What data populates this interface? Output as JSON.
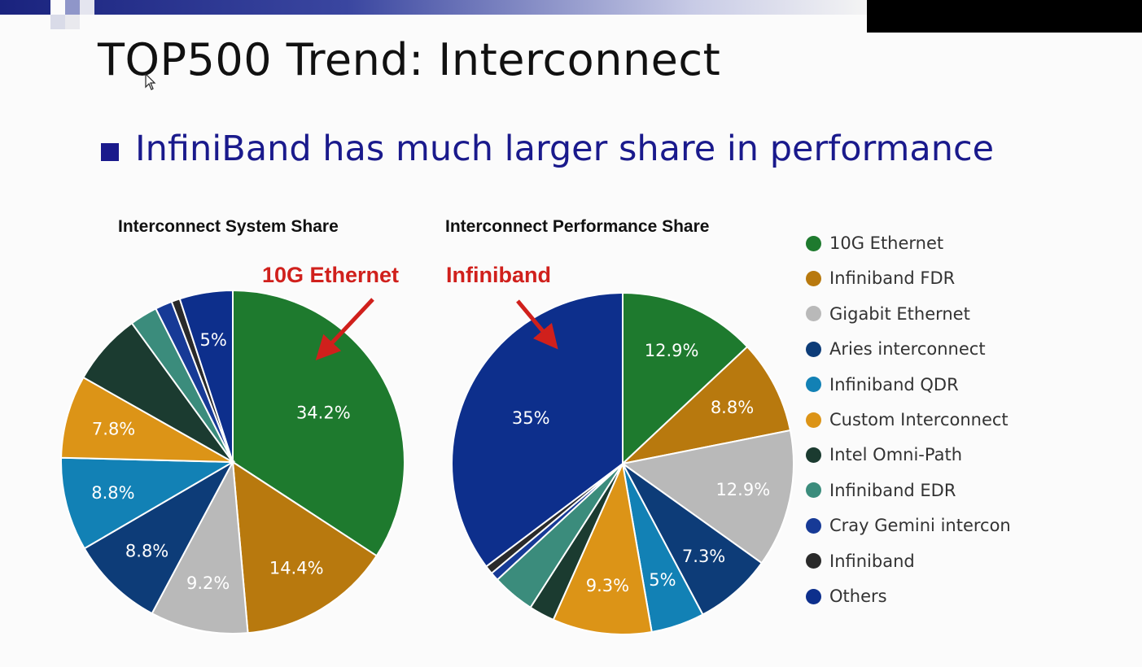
{
  "slide": {
    "title": "TOP500 Trend: Interconnect",
    "bullet": "InfiniBand has much larger share in performance"
  },
  "annotations": {
    "left": "10G Ethernet",
    "right": "Infiniband"
  },
  "colors": {
    "10G Ethernet": "#1e7a2e",
    "Infiniband FDR": "#b8790e",
    "Gigabit Ethernet": "#b9b9b9",
    "Aries interconnect": "#0d3c78",
    "Infiniband QDR": "#1281b5",
    "Custom Interconnect": "#dc9417",
    "Intel Omni-Path": "#1b3b30",
    "Infiniband EDR": "#3b8c7c",
    "Cray Gemini interconnect": "#173a96",
    "Infiniband": "#2a2a2a",
    "Others": "#0d2f8c",
    "annotation": "#d0201c",
    "bullet": "#1a1a8c"
  },
  "legend": [
    {
      "label": "10G Ethernet",
      "series": "10G Ethernet"
    },
    {
      "label": "Infiniband FDR",
      "series": "Infiniband FDR"
    },
    {
      "label": "Gigabit Ethernet",
      "series": "Gigabit Ethernet"
    },
    {
      "label": "Aries interconnect",
      "series": "Aries interconnect"
    },
    {
      "label": "Infiniband QDR",
      "series": "Infiniband QDR"
    },
    {
      "label": "Custom Interconnect",
      "series": "Custom Interconnect"
    },
    {
      "label": "Intel Omni-Path",
      "series": "Intel Omni-Path"
    },
    {
      "label": "Infiniband EDR",
      "series": "Infiniband EDR"
    },
    {
      "label": "Cray Gemini interconnec",
      "series": "Cray Gemini interconnect"
    },
    {
      "label": "Infiniband",
      "series": "Infiniband"
    },
    {
      "label": "Others",
      "series": "Others"
    }
  ],
  "chart_data": [
    {
      "type": "pie",
      "title": "Interconnect System Share",
      "start_angle_deg": 0,
      "direction": "clockwise",
      "slices": [
        {
          "label": "10G Ethernet",
          "value": 34.2,
          "text": "34.2%"
        },
        {
          "label": "Infiniband FDR",
          "value": 14.4,
          "text": "14.4%"
        },
        {
          "label": "Gigabit Ethernet",
          "value": 9.2,
          "text": "9.2%"
        },
        {
          "label": "Aries interconnect",
          "value": 8.8,
          "text": "8.8%"
        },
        {
          "label": "Infiniband QDR",
          "value": 8.8,
          "text": "8.8%"
        },
        {
          "label": "Custom Interconnect",
          "value": 7.8,
          "text": "7.8%"
        },
        {
          "label": "Intel Omni-Path",
          "value": 6.8,
          "text": ""
        },
        {
          "label": "Infiniband EDR",
          "value": 2.6,
          "text": ""
        },
        {
          "label": "Cray Gemini interconnect",
          "value": 1.6,
          "text": ""
        },
        {
          "label": "Infiniband",
          "value": 0.8,
          "text": ""
        },
        {
          "label": "Others",
          "value": 5.0,
          "text": "5%"
        }
      ]
    },
    {
      "type": "pie",
      "title": "Interconnect Performance Share",
      "start_angle_deg": 0,
      "direction": "clockwise",
      "slices": [
        {
          "label": "10G Ethernet",
          "value": 12.9,
          "text": "12.9%"
        },
        {
          "label": "Infiniband FDR",
          "value": 8.8,
          "text": "8.8%"
        },
        {
          "label": "Gigabit Ethernet",
          "value": 12.9,
          "text": "12.9%"
        },
        {
          "label": "Aries interconnect",
          "value": 7.3,
          "text": "7.3%"
        },
        {
          "label": "Infiniband QDR",
          "value": 5.0,
          "text": "5%"
        },
        {
          "label": "Custom Interconnect",
          "value": 9.3,
          "text": "9.3%"
        },
        {
          "label": "Intel Omni-Path",
          "value": 2.4,
          "text": ""
        },
        {
          "label": "Infiniband EDR",
          "value": 4.0,
          "text": ""
        },
        {
          "label": "Cray Gemini interconnect",
          "value": 0.8,
          "text": ""
        },
        {
          "label": "Infiniband",
          "value": 0.8,
          "text": ""
        },
        {
          "label": "Others",
          "value": 35.0,
          "text": "35%"
        }
      ]
    }
  ]
}
